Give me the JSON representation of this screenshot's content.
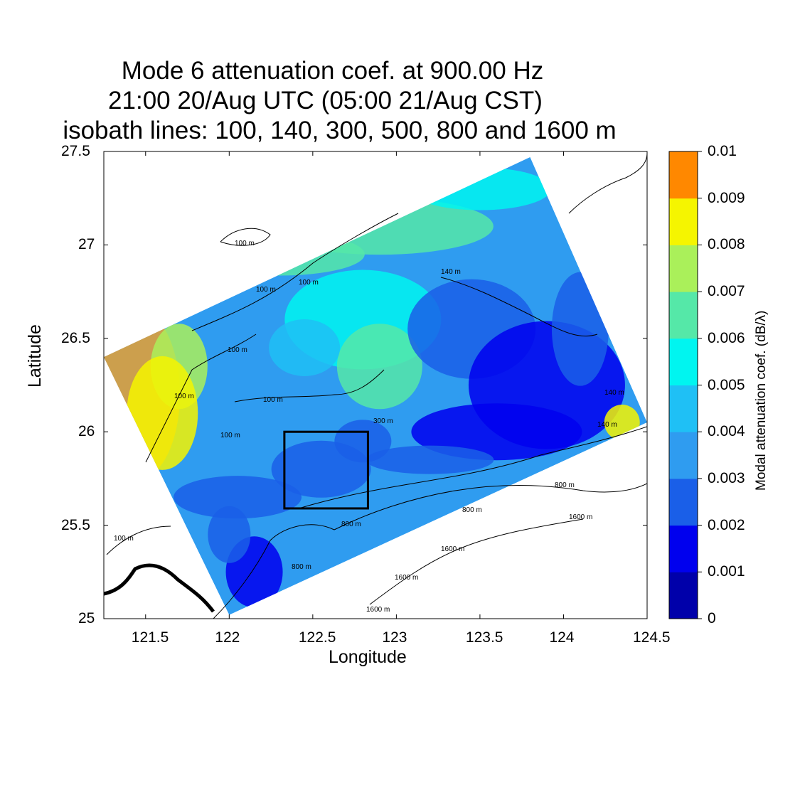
{
  "title": {
    "line1": "Mode 6 attenuation coef. at 900.00 Hz",
    "line2": "21:00 20/Aug UTC (05:00 21/Aug CST)",
    "line3": "isobath lines: 100, 140, 300, 500, 800 and 1600 m"
  },
  "chart_data": {
    "type": "heatmap",
    "title": "Mode 6 attenuation coef. at 900.00 Hz",
    "xlabel": "Longitude",
    "ylabel": "Latitude",
    "xlim": [
      121.25,
      124.5
    ],
    "ylim": [
      25,
      27.5
    ],
    "xticks": [
      121.5,
      122,
      122.5,
      123,
      123.5,
      124,
      124.5
    ],
    "xtick_labels": [
      "121.5",
      "122",
      "122.5",
      "123",
      "123.5",
      "124",
      "124.5"
    ],
    "yticks": [
      25,
      25.5,
      26,
      26.5,
      27,
      27.5
    ],
    "ytick_labels": [
      "25",
      "25.5",
      "26",
      "26.5",
      "27",
      "27.5"
    ],
    "colorbar": {
      "label": "Modal attenuation coef. (dB/λ)",
      "ticks": [
        0,
        0.001,
        0.002,
        0.003,
        0.004,
        0.005,
        0.006,
        0.007,
        0.008,
        0.009,
        0.01
      ],
      "tick_labels": [
        "0",
        "0.001",
        "0.002",
        "0.003",
        "0.004",
        "0.005",
        "0.006",
        "0.007",
        "0.008",
        "0.009",
        "0.01"
      ],
      "colors": [
        "#0000aa",
        "#0000ee",
        "#1a5fe8",
        "#2f9cf0",
        "#1fc0f5",
        "#00f5f0",
        "#55e8a8",
        "#aaf05a",
        "#f5f500",
        "#e8a030",
        "#ff8800"
      ]
    },
    "isobaths_m": [
      100,
      140,
      300,
      500,
      800,
      1600
    ],
    "contour_labels": [
      "100 m",
      "100 m",
      "100 m",
      "100 m",
      "100 m",
      "100 m",
      "100 m",
      "100 m",
      "140 m",
      "140 m",
      "140 m",
      "300 m",
      "800 m",
      "800 m",
      "800 m",
      "800 m",
      "1600 m",
      "1600 m",
      "1600 m",
      "1600 m"
    ],
    "domain_corners_lonlat": [
      [
        121.25,
        26.4
      ],
      [
        123.8,
        27.47
      ],
      [
        124.5,
        26.05
      ],
      [
        122.0,
        25.02
      ]
    ],
    "box_lonlat": {
      "lon": [
        122.33,
        122.83
      ],
      "lat": [
        25.59,
        26.0
      ]
    }
  },
  "colors": {
    "land_line": "#000000",
    "plot_frame": "#000000"
  }
}
